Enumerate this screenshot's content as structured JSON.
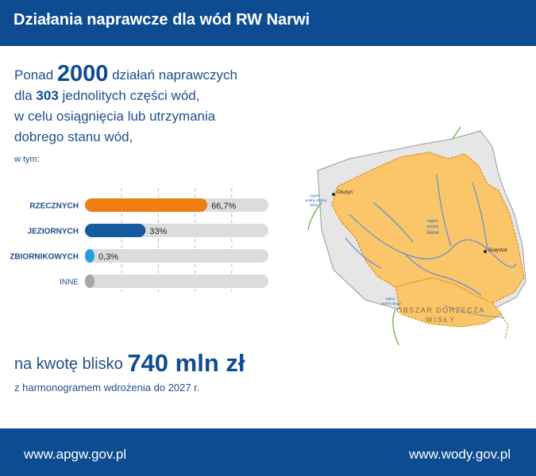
{
  "header": {
    "title": "Działania naprawcze dla wód RW Narwi"
  },
  "intro": {
    "line1_prefix": "Ponad",
    "count_actions": "2000",
    "line1_suffix": "działań naprawczych",
    "line2_prefix": "dla",
    "count_bodies": "303",
    "line2_suffix": "jednolitych części wód,",
    "line3": "w celu osiągnięcia lub utrzymania",
    "line4": "dobrego stanu wód,",
    "w_tym": "w tym:"
  },
  "chart_data": {
    "type": "bar",
    "orientation": "horizontal",
    "categories": [
      "RZECZNYCH",
      "JEZIORNYCH",
      "ZBIORNIKOWYCH",
      "INNE"
    ],
    "values": [
      66.7,
      33,
      0.3,
      0
    ],
    "value_labels": [
      "66,7%",
      "33%",
      "0,3%",
      ""
    ],
    "colors": [
      "#ee7d12",
      "#155a9c",
      "#2b9be0",
      "#a7a7a7"
    ],
    "xlim": [
      0,
      100
    ],
    "grid": true
  },
  "amount": {
    "prefix": "na kwotę blisko",
    "value": "740 mln zł",
    "schedule": "z harmonogramem wdrożenia do 2027 r."
  },
  "map": {
    "label_olsztyn": "Olsztyn",
    "label_bialystok": "Białystok",
    "label_region_narwi_1": "region",
    "label_region_narwi_2": "wodny",
    "label_region_narwi_3": "Narwi",
    "label_region_dolnej_wisly_1": "region",
    "label_region_dolnej_wisly_2": "wodny Dolnej",
    "label_region_dolnej_wisly_3": "Wisły",
    "label_region_bugu_1": "region",
    "label_region_bugu_2": "wodny Bugu",
    "label_obszar_1": "OBSZAR DORZECZA",
    "label_obszar_2": "WISŁY",
    "colors": {
      "basin": "#fbc56a",
      "outer": "#e6e6e6",
      "river": "#5b8fd6",
      "border": "#d98b12"
    }
  },
  "footer": {
    "left": "www.apgw.gov.pl",
    "right": "www.wody.gov.pl"
  }
}
